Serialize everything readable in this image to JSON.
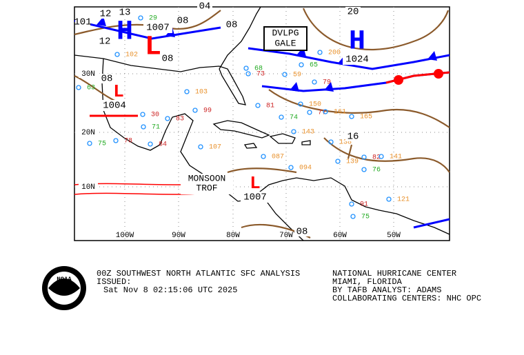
{
  "map": {
    "centers": [
      {
        "symbol": "H",
        "pressure": "1024"
      },
      {
        "symbol": "H"
      },
      {
        "symbol": "L",
        "pressure": "1004"
      },
      {
        "symbol": "L",
        "pressure": "1007"
      },
      {
        "symbol": "L",
        "pressure": "1007"
      }
    ],
    "isobar_labels": [
      "12",
      "13",
      "12",
      "08",
      "04",
      "08",
      "20",
      "08",
      "08",
      "16",
      "08",
      "08",
      "101"
    ],
    "gale_box": [
      "DVLPG",
      "GALE"
    ],
    "trough_label": [
      "MONSOON",
      "TROF"
    ],
    "lat_labels": [
      "30N",
      "20N",
      "10N"
    ],
    "lon_labels": [
      "100W",
      "90W",
      "80W",
      "70W",
      "60W",
      "50W"
    ],
    "station_values": [
      "102",
      "29",
      "63",
      "75",
      "73",
      "79",
      "81",
      "84",
      "82",
      "76",
      "165",
      "141",
      "121",
      "150",
      "138",
      "139",
      "087",
      "094",
      "103",
      "107",
      "99",
      "83",
      "71",
      "78",
      "74",
      "77",
      "59",
      "200",
      "65",
      "68",
      "161",
      "143",
      "91",
      "75",
      "30"
    ]
  },
  "footer": {
    "title": "00Z SOUTHWEST NORTH ATLANTIC SFC ANALYSIS",
    "issued_label": "ISSUED:",
    "issued_time": "Sat Nov 8 02:15:06 UTC 2025",
    "center": "NATIONAL HURRICANE CENTER",
    "location": "MIAMI, FLORIDA",
    "analyst": "BY TAFB ANALYST: ADAMS",
    "collab": "COLLABORATING CENTERS: NHC OPC",
    "logo": "NOAA"
  }
}
